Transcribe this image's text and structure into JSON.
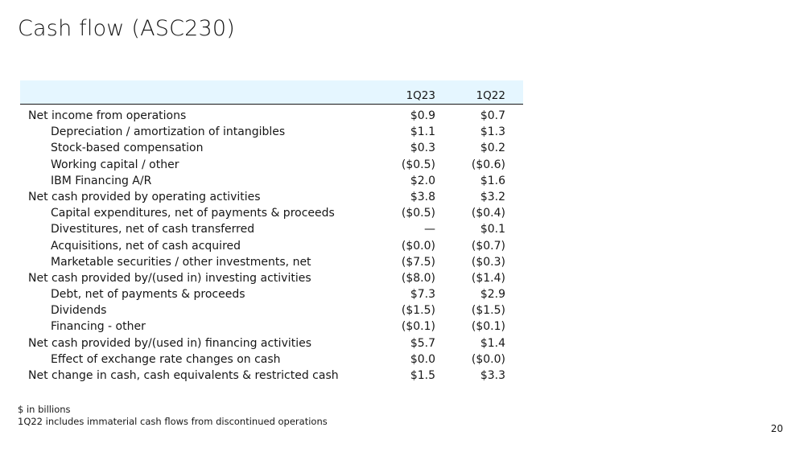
{
  "slide": {
    "title": "Cash flow (ASC230)",
    "page_number": "20"
  },
  "table": {
    "columns": [
      "1Q23",
      "1Q22"
    ],
    "rows": [
      {
        "label": "Net income from operations",
        "indent": false,
        "v1": "$0.9",
        "v2": "$0.7"
      },
      {
        "label": "Depreciation / amortization of intangibles",
        "indent": true,
        "v1": "$1.1",
        "v2": "$1.3"
      },
      {
        "label": "Stock-based compensation",
        "indent": true,
        "v1": "$0.3",
        "v2": "$0.2"
      },
      {
        "label": "Working capital / other",
        "indent": true,
        "v1": "($0.5)",
        "v2": "($0.6)"
      },
      {
        "label": "IBM Financing  A/R",
        "indent": true,
        "v1": "$2.0",
        "v2": "$1.6"
      },
      {
        "label": "Net cash provided by operating activities",
        "indent": false,
        "v1": "$3.8",
        "v2": "$3.2"
      },
      {
        "label": "Capital expenditures, net of payments & proceeds",
        "indent": true,
        "v1": "($0.5)",
        "v2": "($0.4)"
      },
      {
        "label": "Divestitures, net of cash transferred",
        "indent": true,
        "v1": "—",
        "v2": "$0.1"
      },
      {
        "label": "Acquisitions, net of cash acquired",
        "indent": true,
        "v1": "($0.0)",
        "v2": "($0.7)"
      },
      {
        "label": "Marketable securities / other investments, net",
        "indent": true,
        "v1": "($7.5)",
        "v2": "($0.3)"
      },
      {
        "label": "Net cash provided by/(used in) investing activities",
        "indent": false,
        "v1": "($8.0)",
        "v2": "($1.4)"
      },
      {
        "label": "Debt, net of payments & proceeds",
        "indent": true,
        "v1": "$7.3",
        "v2": "$2.9"
      },
      {
        "label": "Dividends",
        "indent": true,
        "v1": "($1.5)",
        "v2": "($1.5)"
      },
      {
        "label": "Financing - other",
        "indent": true,
        "v1": "($0.1)",
        "v2": "($0.1)"
      },
      {
        "label": "Net cash provided by/(used in) financing activities",
        "indent": false,
        "v1": "$5.7",
        "v2": "$1.4"
      },
      {
        "label": "Effect of exchange rate changes on cash",
        "indent": true,
        "v1": "$0.0",
        "v2": "($0.0)"
      },
      {
        "label": "Net change in cash, cash equivalents & restricted cash",
        "indent": false,
        "v1": "$1.5",
        "v2": "$3.3"
      }
    ]
  },
  "footnotes": [
    "$ in billions",
    "1Q22 includes immaterial cash flows from discontinued operations"
  ],
  "colors": {
    "header_band": "#e5f6ff",
    "text": "#161616"
  }
}
